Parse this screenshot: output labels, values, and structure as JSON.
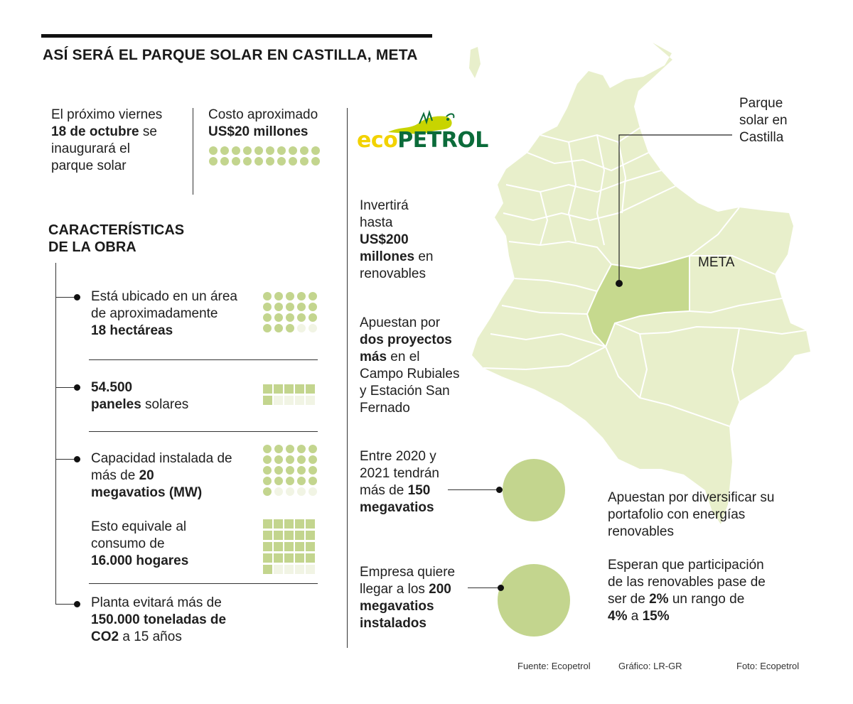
{
  "title": "ASÍ SERÁ EL PARQUE SOLAR EN CASTILLA, META",
  "intro": {
    "date_line1": "El próximo viernes",
    "date_bold": "18 de octubre",
    "date_line2_rest": " se",
    "date_line3": "inaugurará el",
    "date_line4": "parque solar",
    "cost_label": "Costo aproximado",
    "cost_value": "US$20 millones",
    "cost_units": 20,
    "cost_filled": 20
  },
  "features_title_1": "CARACTERÍSTICAS",
  "features_title_2": "DE LA OBRA",
  "features": {
    "area_l1": "Está ubicado en un área",
    "area_l2": "de aproximadamente",
    "area_bold": "18 hectáreas",
    "area_units": 20,
    "area_filled": 18,
    "panels_bold1": "54.500",
    "panels_bold2": "paneles",
    "panels_rest": " solares",
    "panels_units": 10,
    "panels_filled": 6,
    "cap_l1": "Capacidad instalada de",
    "cap_l2_pre": "más de ",
    "cap_l2_bold": "20",
    "cap_l3_bold": "megavatios (MW)",
    "cap_units": 25,
    "cap_filled": 21,
    "homes_l1": "Esto equivale al",
    "homes_l2": "consumo de",
    "homes_bold": "16.000 hogares",
    "homes_units": 25,
    "homes_filled": 21,
    "co2_l1": "Planta evitará más de",
    "co2_bold1": "150.000 toneladas de",
    "co2_bold2": "CO2",
    "co2_rest": " a 15 años"
  },
  "logo": {
    "eco": "eco",
    "petrol": "PETROL",
    "color_yellow": "#f2d200",
    "color_green": "#0b6b3a",
    "icon": "iguana-icon"
  },
  "middle": {
    "invest_l1": "Invertirá",
    "invest_l2": "hasta",
    "invest_bold1": "US$200",
    "invest_bold2": "millones",
    "invest_rest": " en",
    "invest_l5": "renovables",
    "projects_l1": "Apuestan por",
    "projects_bold1": "dos proyectos",
    "projects_bold2": "más",
    "projects_rest": " en el",
    "projects_l4": "Campo Rubiales",
    "projects_l5": "y Estación San",
    "projects_l6": "Fernado",
    "mw150_l1": "Entre 2020 y",
    "mw150_l2": "2021 tendrán",
    "mw150_pre": "más de ",
    "mw150_bold": "150",
    "mw150_bold2": "megavatios",
    "mw150_value": 150,
    "mw200_l1": "Empresa quiere",
    "mw200_l2_pre": "llegar a los ",
    "mw200_bold": "200",
    "mw200_bold2": "megavatios",
    "mw200_bold3": "instalados",
    "mw200_value": 200
  },
  "map": {
    "callout_l1": "Parque",
    "callout_l2": "solar en",
    "callout_l3": "Castilla",
    "region_label": "META",
    "land_color": "#e8efcb",
    "meta_color": "#c6d98e",
    "border_color": "#ffffff"
  },
  "right": {
    "div_l1": "Apuestan por diversificar su",
    "div_l2": "portafolio con energías",
    "div_l3": "renovables",
    "exp_l1": "Esperan que participación",
    "exp_l2": "de las renovables pase de",
    "exp_l3_pre": "ser de ",
    "exp_l3_bold": "2%",
    "exp_l3_rest": " un rango de",
    "exp_l4_bold1": "4%",
    "exp_l4_mid": " a ",
    "exp_l4_bold2": "15%"
  },
  "footer": {
    "source": "Fuente: Ecopetrol",
    "graphic": "Gráfico: LR-GR",
    "photo": "Foto: Ecopetrol"
  },
  "accent": "#c3d58e"
}
